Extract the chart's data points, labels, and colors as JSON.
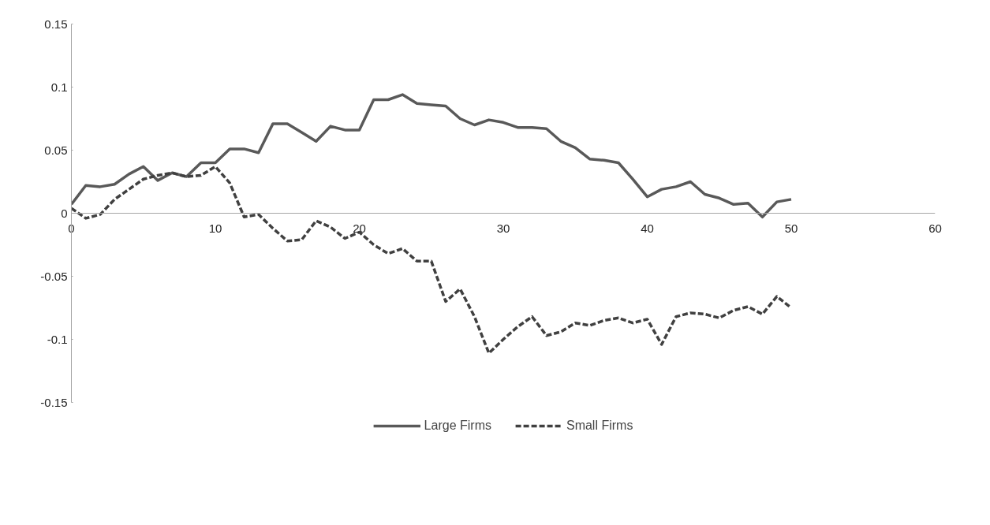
{
  "chart_data": {
    "type": "line",
    "x": [
      0,
      1,
      2,
      3,
      4,
      5,
      6,
      7,
      8,
      9,
      10,
      11,
      12,
      13,
      14,
      15,
      16,
      17,
      18,
      19,
      20,
      21,
      22,
      23,
      24,
      25,
      26,
      27,
      28,
      29,
      30,
      31,
      32,
      33,
      34,
      35,
      36,
      37,
      38,
      39,
      40,
      41,
      42,
      43,
      44,
      45,
      46,
      47,
      48,
      49,
      50
    ],
    "series": [
      {
        "name": "Large Firms",
        "color": "#595959",
        "line_style": "solid",
        "values": [
          0.007,
          0.022,
          0.021,
          0.023,
          0.031,
          0.037,
          0.026,
          0.032,
          0.029,
          0.04,
          0.04,
          0.051,
          0.051,
          0.048,
          0.071,
          0.071,
          0.064,
          0.057,
          0.069,
          0.066,
          0.066,
          0.09,
          0.09,
          0.094,
          0.087,
          0.086,
          0.085,
          0.075,
          0.07,
          0.074,
          0.072,
          0.068,
          0.068,
          0.067,
          0.057,
          0.052,
          0.043,
          0.042,
          0.04,
          0.027,
          0.013,
          0.019,
          0.021,
          0.025,
          0.015,
          0.012,
          0.007,
          0.008,
          -0.003,
          0.009,
          0.011
        ]
      },
      {
        "name": "Small Firms",
        "color": "#404040",
        "line_style": "dashed",
        "values": [
          0.004,
          -0.004,
          -0.001,
          0.011,
          0.019,
          0.027,
          0.03,
          0.032,
          0.029,
          0.03,
          0.037,
          0.024,
          -0.003,
          -0.001,
          -0.012,
          -0.022,
          -0.021,
          -0.006,
          -0.011,
          -0.02,
          -0.015,
          -0.025,
          -0.032,
          -0.028,
          -0.038,
          -0.038,
          -0.07,
          -0.06,
          -0.082,
          -0.111,
          -0.1,
          -0.09,
          -0.082,
          -0.097,
          -0.094,
          -0.087,
          -0.089,
          -0.085,
          -0.083,
          -0.087,
          -0.084,
          -0.104,
          -0.082,
          -0.079,
          -0.08,
          -0.083,
          -0.077,
          -0.074,
          -0.08,
          -0.066,
          -0.075
        ]
      }
    ],
    "xlim": [
      0,
      60
    ],
    "xticks": [
      0,
      10,
      20,
      30,
      40,
      50,
      60
    ],
    "ylim": [
      -0.15,
      0.15
    ],
    "yticks": [
      {
        "value": -0.15,
        "label": "-0.15"
      },
      {
        "value": -0.1,
        "label": "-0.1"
      },
      {
        "value": -0.05,
        "label": "-0.05"
      },
      0,
      {
        "value": 0.05,
        "label": "0.05"
      },
      {
        "value": 0.1,
        "label": "0.1"
      },
      {
        "value": 0.15,
        "label": "0.15"
      }
    ],
    "grid": false,
    "legend": "bottom",
    "marker": "none"
  }
}
